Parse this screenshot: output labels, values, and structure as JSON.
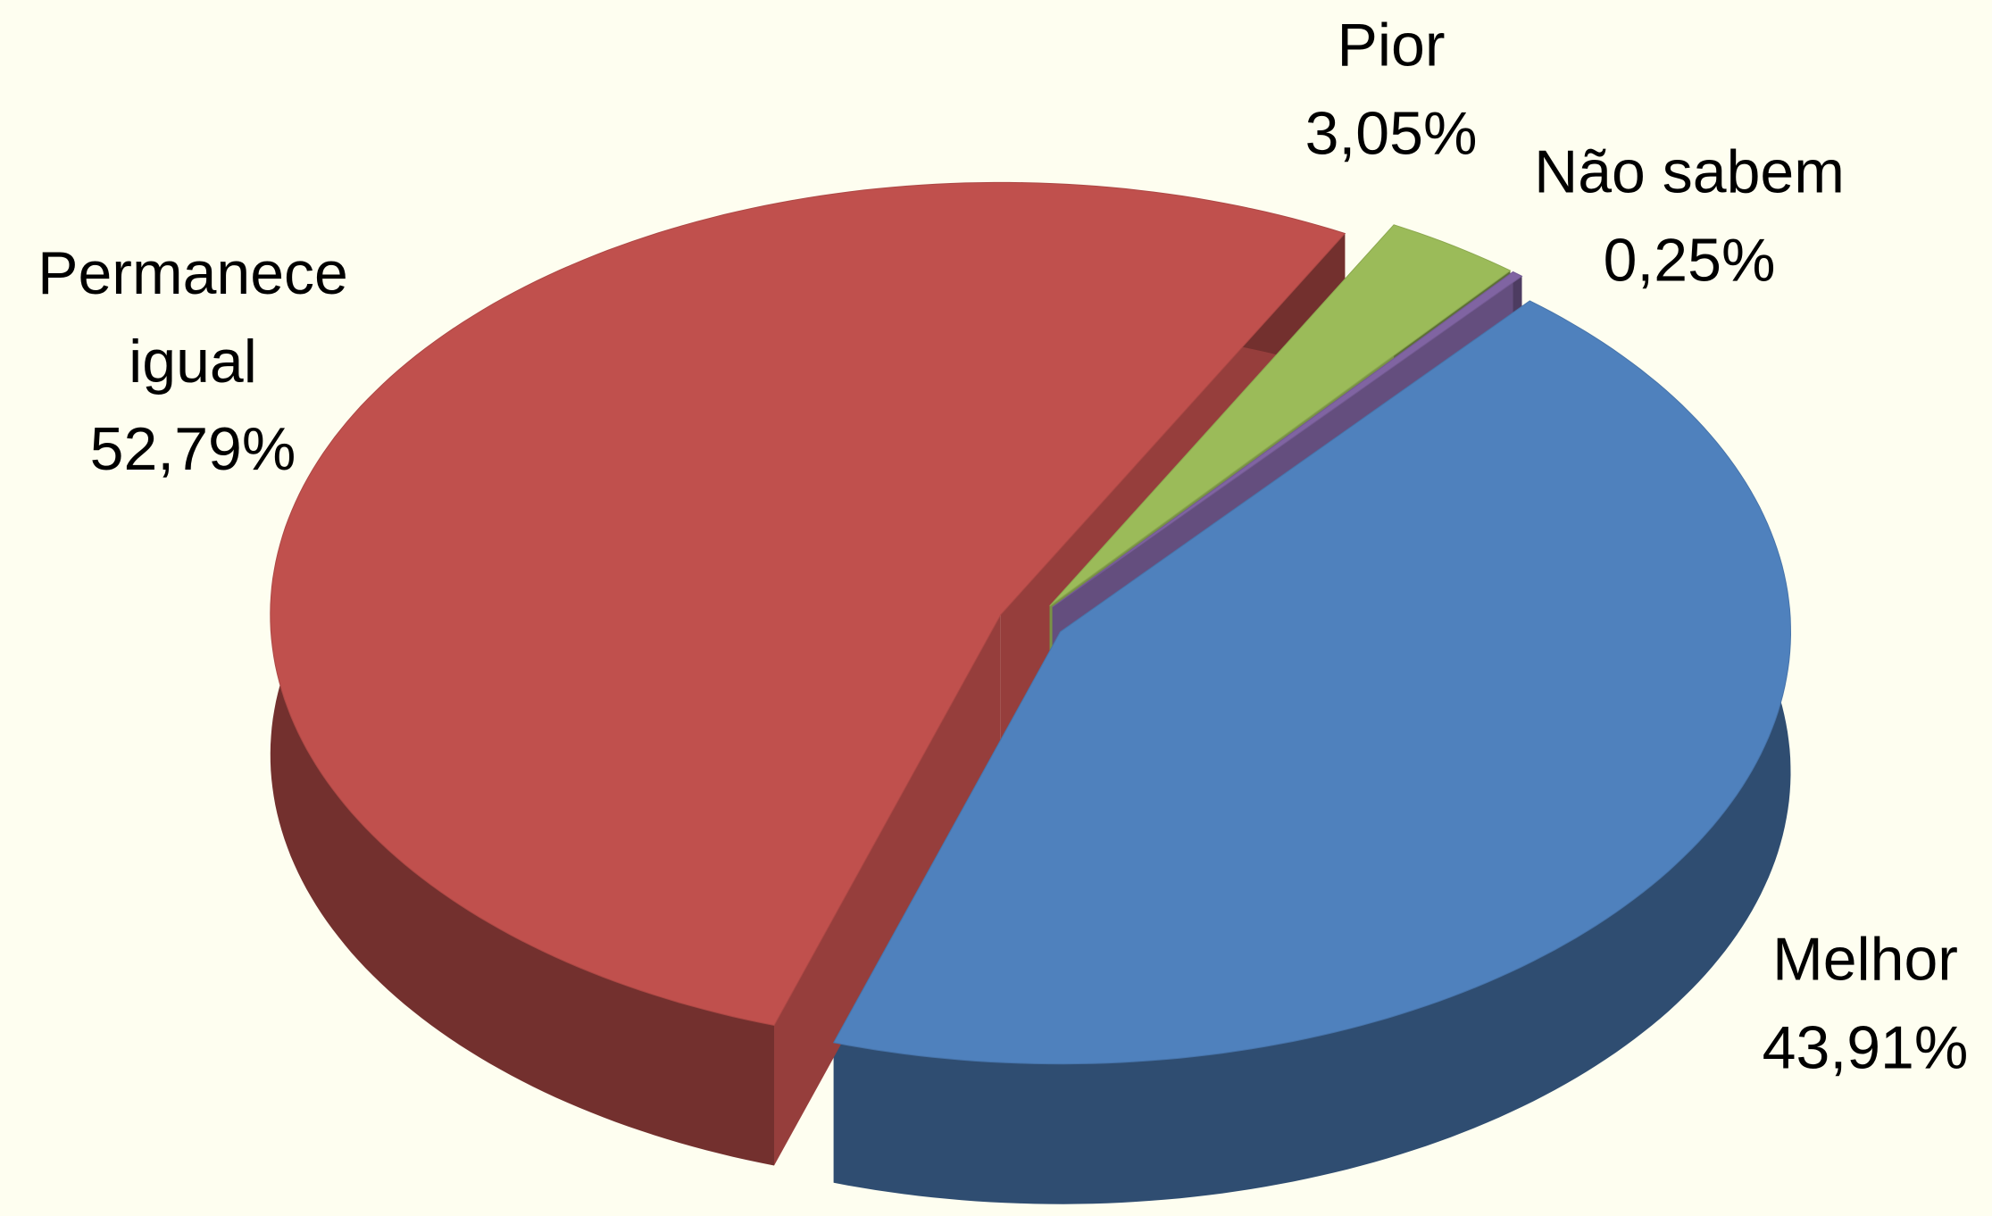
{
  "chart_data": {
    "type": "pie3d",
    "categories": [
      "Melhor",
      "Permanece igual",
      "Pior",
      "Não sabem"
    ],
    "values": [
      43.91,
      52.79,
      3.05,
      0.25
    ],
    "value_labels": [
      "43,91%",
      "52,79%",
      "3,05%",
      "0,25%"
    ],
    "colors": [
      "#4f81bd",
      "#c0504d",
      "#9bbb59",
      "#8064a2"
    ],
    "exploded": true
  }
}
